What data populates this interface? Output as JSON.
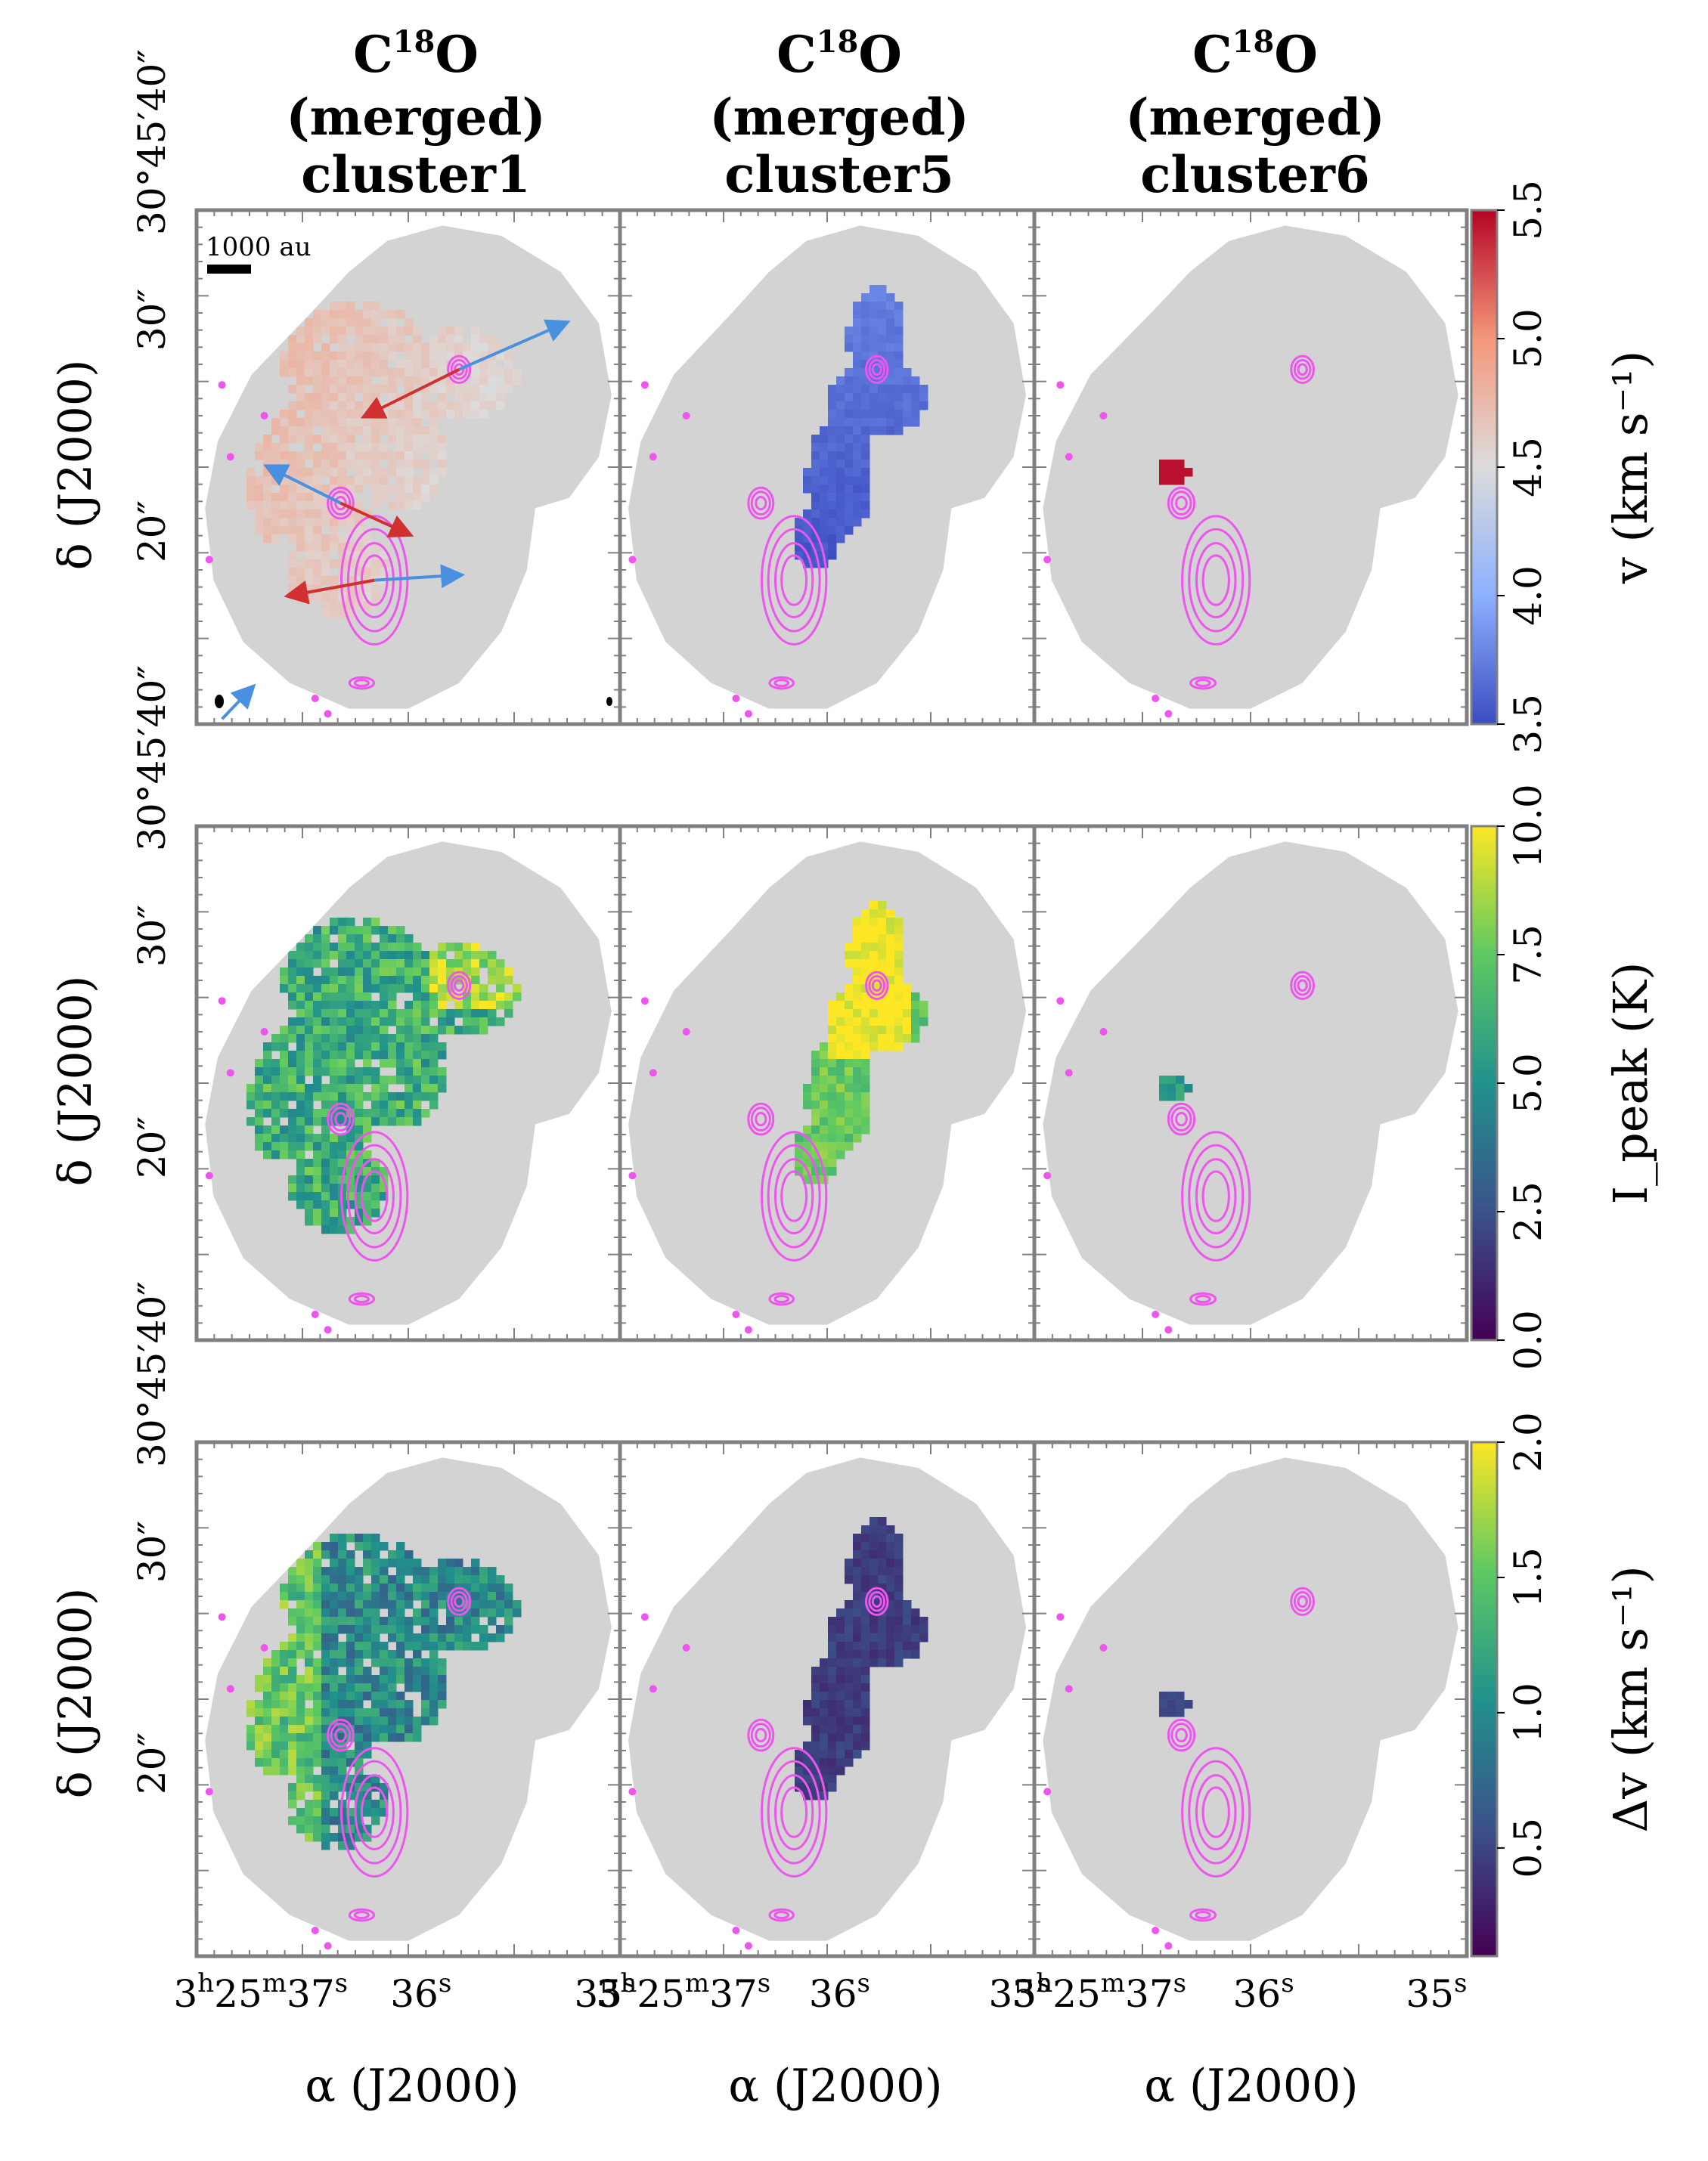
{
  "figure": {
    "columns": [
      {
        "line1": "C",
        "sup": "18",
        "line1b": "O",
        "line2": "(merged)",
        "line3": "cluster1"
      },
      {
        "line1": "C",
        "sup": "18",
        "line1b": "O",
        "line2": "(merged)",
        "line3": "cluster5"
      },
      {
        "line1": "C",
        "sup": "18",
        "line1b": "O",
        "line2": "(merged)",
        "line3": "cluster6"
      }
    ],
    "ylabel": "δ (J2000)",
    "xlabel": "α (J2000)",
    "ytick_labels": [
      "30°45′40″",
      "30″",
      "20″"
    ],
    "xtick_labels": {
      "h": "3h25m37s",
      "m": "36s",
      "e": "35s",
      "p1": "3",
      "p1s": "h",
      "p2": "25",
      "p2s": "m",
      "p3": "37",
      "p3s": "s",
      "p4": "36",
      "p4s": "s",
      "p5": "35",
      "p5s": "s"
    },
    "scalebar_label": "1000 au"
  },
  "chart_data": [
    {
      "type": "heatmap",
      "row": "velocity",
      "colorbar_label": "v (km s⁻¹)",
      "colormap": "coolwarm",
      "clim": [
        3.5,
        5.5
      ],
      "colorbar_ticks": [
        "3.5",
        "4.0",
        "4.5",
        "5.0",
        "5.5"
      ],
      "panels": [
        "cluster1",
        "cluster5",
        "cluster6"
      ],
      "mean_velocity": {
        "cluster1": 4.7,
        "cluster5": 3.8,
        "cluster6": 5.5
      }
    },
    {
      "type": "heatmap",
      "row": "peak_intensity",
      "colorbar_label": "I_peak (K)",
      "colormap": "viridis",
      "clim": [
        0.0,
        10.0
      ],
      "colorbar_ticks": [
        "0.0",
        "2.5",
        "5.0",
        "7.5",
        "10.0"
      ],
      "panels": [
        "cluster1",
        "cluster5",
        "cluster6"
      ]
    },
    {
      "type": "heatmap",
      "row": "linewidth",
      "colorbar_label": "Δv (km s⁻¹)",
      "colormap": "viridis",
      "clim": [
        0.1,
        2.0
      ],
      "colorbar_ticks": [
        "0.5",
        "1.0",
        "1.5",
        "2.0"
      ],
      "panels": [
        "cluster1",
        "cluster5",
        "cluster6"
      ]
    }
  ],
  "colors": {
    "mask": "#d3d3d3",
    "contour": "#ee55ee",
    "frame": "#808080",
    "outflow_red": "#d03030",
    "outflow_blue": "#4a90e0"
  }
}
